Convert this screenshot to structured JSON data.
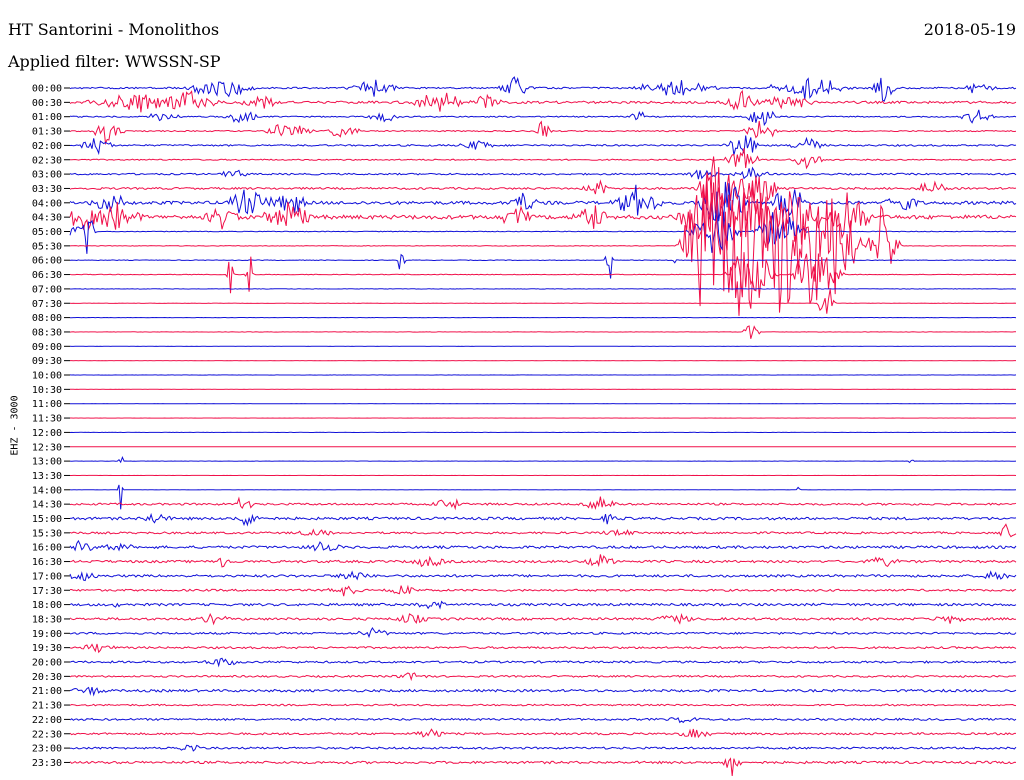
{
  "header": {
    "title": "HT Santorini - Monolithos",
    "date": "2018-05-19",
    "filter": "Applied filter: WWSSN-SP",
    "channel": "EHZ - 3000"
  },
  "colors": {
    "blue": "#1010d8",
    "red": "#f0104a"
  },
  "chart_data": {
    "type": "line",
    "title": "HT Santorini - Monolithos",
    "ylabel": "EHZ - 3000",
    "rows": [
      {
        "label": "00:00",
        "color": "blue",
        "noise": 0.8,
        "events": [
          {
            "x": 0.16,
            "a": 15,
            "w": 0.04
          },
          {
            "x": 0.32,
            "a": 12,
            "w": 0.03
          },
          {
            "x": 0.47,
            "a": 14,
            "w": 0.02
          },
          {
            "x": 0.64,
            "a": 10,
            "w": 0.05
          },
          {
            "x": 0.78,
            "a": 14,
            "w": 0.05
          },
          {
            "x": 0.86,
            "a": 22,
            "w": 0.015
          },
          {
            "x": 0.96,
            "a": 8,
            "w": 0.02
          }
        ]
      },
      {
        "label": "00:30",
        "color": "red",
        "noise": 1.2,
        "events": [
          {
            "x": 0.07,
            "a": 10,
            "w": 0.06
          },
          {
            "x": 0.13,
            "a": 14,
            "w": 0.03
          },
          {
            "x": 0.2,
            "a": 12,
            "w": 0.02
          },
          {
            "x": 0.39,
            "a": 14,
            "w": 0.03
          },
          {
            "x": 0.44,
            "a": 8,
            "w": 0.02
          },
          {
            "x": 0.71,
            "a": 16,
            "w": 0.02
          },
          {
            "x": 0.76,
            "a": 10,
            "w": 0.03
          }
        ]
      },
      {
        "label": "01:00",
        "color": "blue",
        "noise": 0.6,
        "events": [
          {
            "x": 0.1,
            "a": 8,
            "w": 0.02
          },
          {
            "x": 0.18,
            "a": 10,
            "w": 0.02
          },
          {
            "x": 0.33,
            "a": 8,
            "w": 0.02
          },
          {
            "x": 0.6,
            "a": 10,
            "w": 0.01
          },
          {
            "x": 0.73,
            "a": 14,
            "w": 0.02
          },
          {
            "x": 0.96,
            "a": 10,
            "w": 0.02
          }
        ]
      },
      {
        "label": "01:30",
        "color": "red",
        "noise": 0.6,
        "events": [
          {
            "x": 0.04,
            "a": 14,
            "w": 0.02
          },
          {
            "x": 0.23,
            "a": 10,
            "w": 0.03
          },
          {
            "x": 0.29,
            "a": 10,
            "w": 0.02
          },
          {
            "x": 0.5,
            "a": 12,
            "w": 0.01
          },
          {
            "x": 0.73,
            "a": 14,
            "w": 0.02
          }
        ]
      },
      {
        "label": "02:00",
        "color": "blue",
        "noise": 0.8,
        "events": [
          {
            "x": 0.03,
            "a": 12,
            "w": 0.02
          },
          {
            "x": 0.43,
            "a": 8,
            "w": 0.02
          },
          {
            "x": 0.71,
            "a": 18,
            "w": 0.02
          },
          {
            "x": 0.78,
            "a": 10,
            "w": 0.02
          }
        ]
      },
      {
        "label": "02:30",
        "color": "red",
        "noise": 0.6,
        "events": [
          {
            "x": 0.71,
            "a": 16,
            "w": 0.02
          },
          {
            "x": 0.78,
            "a": 10,
            "w": 0.02
          }
        ]
      },
      {
        "label": "03:00",
        "color": "blue",
        "noise": 0.8,
        "events": [
          {
            "x": 0.17,
            "a": 6,
            "w": 0.02
          },
          {
            "x": 0.67,
            "a": 8,
            "w": 0.02
          },
          {
            "x": 0.72,
            "a": 10,
            "w": 0.02
          }
        ]
      },
      {
        "label": "03:30",
        "color": "red",
        "noise": 1.0,
        "events": [
          {
            "x": 0.56,
            "a": 10,
            "w": 0.02
          },
          {
            "x": 0.69,
            "a": 40,
            "w": 0.03
          },
          {
            "x": 0.73,
            "a": 30,
            "w": 0.02
          },
          {
            "x": 0.91,
            "a": 8,
            "w": 0.02
          }
        ]
      },
      {
        "label": "04:00",
        "color": "blue",
        "noise": 1.6,
        "events": [
          {
            "x": 0.04,
            "a": 18,
            "w": 0.02
          },
          {
            "x": 0.19,
            "a": 16,
            "w": 0.03
          },
          {
            "x": 0.23,
            "a": 20,
            "w": 0.02
          },
          {
            "x": 0.48,
            "a": 12,
            "w": 0.02
          },
          {
            "x": 0.6,
            "a": 18,
            "w": 0.03
          },
          {
            "x": 0.69,
            "a": 40,
            "w": 0.03
          },
          {
            "x": 0.76,
            "a": 30,
            "w": 0.02
          },
          {
            "x": 0.88,
            "a": 14,
            "w": 0.02
          }
        ]
      },
      {
        "label": "04:30",
        "color": "red",
        "noise": 2.0,
        "events": [
          {
            "x": 0.01,
            "a": 24,
            "w": 0.03
          },
          {
            "x": 0.05,
            "a": 18,
            "w": 0.03
          },
          {
            "x": 0.16,
            "a": 14,
            "w": 0.02
          },
          {
            "x": 0.23,
            "a": 20,
            "w": 0.03
          },
          {
            "x": 0.47,
            "a": 14,
            "w": 0.02
          },
          {
            "x": 0.55,
            "a": 18,
            "w": 0.02
          },
          {
            "x": 0.68,
            "a": 60,
            "w": 0.04
          },
          {
            "x": 0.73,
            "a": 50,
            "w": 0.03
          },
          {
            "x": 0.77,
            "a": 40,
            "w": 0.03
          },
          {
            "x": 0.82,
            "a": 30,
            "w": 0.03
          }
        ]
      },
      {
        "label": "05:00",
        "color": "blue",
        "noise": 0.3,
        "events": [
          {
            "x": 0.01,
            "a": 14,
            "w": 0.02
          },
          {
            "x": 0.02,
            "a": 60,
            "w": 0.004
          },
          {
            "x": 0.68,
            "a": 40,
            "w": 0.03
          },
          {
            "x": 0.75,
            "a": 30,
            "w": 0.03
          }
        ]
      },
      {
        "label": "05:30",
        "color": "red",
        "noise": 0.3,
        "events": [
          {
            "x": 0.68,
            "a": 110,
            "w": 0.04
          },
          {
            "x": 0.72,
            "a": 90,
            "w": 0.04
          },
          {
            "x": 0.76,
            "a": 110,
            "w": 0.04
          },
          {
            "x": 0.81,
            "a": 80,
            "w": 0.03
          },
          {
            "x": 0.86,
            "a": 50,
            "w": 0.02
          }
        ]
      },
      {
        "label": "06:00",
        "color": "blue",
        "noise": 0.3,
        "events": [
          {
            "x": 0.35,
            "a": 16,
            "w": 0.005
          },
          {
            "x": 0.57,
            "a": 40,
            "w": 0.005
          },
          {
            "x": 0.64,
            "a": 6,
            "w": 0.003
          }
        ]
      },
      {
        "label": "06:30",
        "color": "red",
        "noise": 0.3,
        "events": [
          {
            "x": 0.17,
            "a": 30,
            "w": 0.005
          },
          {
            "x": 0.19,
            "a": 60,
            "w": 0.005
          },
          {
            "x": 0.72,
            "a": 40,
            "w": 0.03
          },
          {
            "x": 0.79,
            "a": 50,
            "w": 0.03
          }
        ]
      },
      {
        "label": "07:00",
        "color": "blue",
        "noise": 0.2,
        "events": []
      },
      {
        "label": "07:30",
        "color": "red",
        "noise": 0.2,
        "events": [
          {
            "x": 0.8,
            "a": 30,
            "w": 0.01
          }
        ]
      },
      {
        "label": "08:00",
        "color": "blue",
        "noise": 0.15,
        "events": []
      },
      {
        "label": "08:30",
        "color": "red",
        "noise": 0.15,
        "events": [
          {
            "x": 0.72,
            "a": 18,
            "w": 0.01
          }
        ]
      },
      {
        "label": "09:00",
        "color": "blue",
        "noise": 0.1,
        "events": []
      },
      {
        "label": "09:30",
        "color": "red",
        "noise": 0.1,
        "events": []
      },
      {
        "label": "10:00",
        "color": "blue",
        "noise": 0.1,
        "events": []
      },
      {
        "label": "10:30",
        "color": "red",
        "noise": 0.1,
        "events": []
      },
      {
        "label": "11:00",
        "color": "blue",
        "noise": 0.1,
        "events": []
      },
      {
        "label": "11:30",
        "color": "red",
        "noise": 0.1,
        "events": []
      },
      {
        "label": "12:00",
        "color": "blue",
        "noise": 0.1,
        "events": []
      },
      {
        "label": "12:30",
        "color": "red",
        "noise": 0.1,
        "events": []
      },
      {
        "label": "13:00",
        "color": "blue",
        "noise": 0.1,
        "events": [
          {
            "x": 0.054,
            "a": 12,
            "w": 0.003
          },
          {
            "x": 0.89,
            "a": 10,
            "w": 0.003
          }
        ]
      },
      {
        "label": "13:30",
        "color": "red",
        "noise": 0.1,
        "events": []
      },
      {
        "label": "14:00",
        "color": "blue",
        "noise": 0.15,
        "events": [
          {
            "x": 0.054,
            "a": 40,
            "w": 0.003
          },
          {
            "x": 0.77,
            "a": 4,
            "w": 0.003
          }
        ]
      },
      {
        "label": "14:30",
        "color": "red",
        "noise": 1.0,
        "events": [
          {
            "x": 0.18,
            "a": 16,
            "w": 0.004
          },
          {
            "x": 0.19,
            "a": 10,
            "w": 0.004
          },
          {
            "x": 0.4,
            "a": 8,
            "w": 0.02
          },
          {
            "x": 0.56,
            "a": 8,
            "w": 0.02
          }
        ]
      },
      {
        "label": "15:00",
        "color": "blue",
        "noise": 1.3,
        "events": [
          {
            "x": 0.09,
            "a": 6,
            "w": 0.02
          },
          {
            "x": 0.19,
            "a": 8,
            "w": 0.02
          },
          {
            "x": 0.57,
            "a": 8,
            "w": 0.01
          }
        ]
      },
      {
        "label": "15:30",
        "color": "red",
        "noise": 1.0,
        "events": [
          {
            "x": 0.26,
            "a": 6,
            "w": 0.02
          },
          {
            "x": 0.58,
            "a": 6,
            "w": 0.02
          },
          {
            "x": 0.99,
            "a": 10,
            "w": 0.01
          }
        ]
      },
      {
        "label": "16:00",
        "color": "blue",
        "noise": 1.3,
        "events": [
          {
            "x": 0.01,
            "a": 6,
            "w": 0.02
          },
          {
            "x": 0.05,
            "a": 6,
            "w": 0.02
          },
          {
            "x": 0.27,
            "a": 6,
            "w": 0.02
          }
        ]
      },
      {
        "label": "16:30",
        "color": "red",
        "noise": 1.2,
        "events": [
          {
            "x": 0.16,
            "a": 8,
            "w": 0.01
          },
          {
            "x": 0.38,
            "a": 7,
            "w": 0.02
          },
          {
            "x": 0.56,
            "a": 7,
            "w": 0.02
          },
          {
            "x": 0.86,
            "a": 6,
            "w": 0.02
          }
        ]
      },
      {
        "label": "17:00",
        "color": "blue",
        "noise": 1.2,
        "events": [
          {
            "x": 0.01,
            "a": 6,
            "w": 0.02
          },
          {
            "x": 0.3,
            "a": 6,
            "w": 0.02
          },
          {
            "x": 0.98,
            "a": 6,
            "w": 0.02
          }
        ]
      },
      {
        "label": "17:30",
        "color": "red",
        "noise": 1.0,
        "events": [
          {
            "x": 0.29,
            "a": 6,
            "w": 0.02
          },
          {
            "x": 0.35,
            "a": 6,
            "w": 0.02
          }
        ]
      },
      {
        "label": "18:00",
        "color": "blue",
        "noise": 1.2,
        "events": [
          {
            "x": 0.05,
            "a": 6,
            "w": 0.005
          },
          {
            "x": 0.38,
            "a": 6,
            "w": 0.02
          }
        ]
      },
      {
        "label": "18:30",
        "color": "red",
        "noise": 1.2,
        "events": [
          {
            "x": 0.15,
            "a": 5,
            "w": 0.02
          },
          {
            "x": 0.36,
            "a": 6,
            "w": 0.02
          },
          {
            "x": 0.64,
            "a": 7,
            "w": 0.02
          },
          {
            "x": 0.93,
            "a": 7,
            "w": 0.02
          }
        ]
      },
      {
        "label": "19:00",
        "color": "blue",
        "noise": 1.0,
        "events": [
          {
            "x": 0.32,
            "a": 6,
            "w": 0.02
          }
        ]
      },
      {
        "label": "19:30",
        "color": "red",
        "noise": 1.0,
        "events": [
          {
            "x": 0.03,
            "a": 6,
            "w": 0.02
          }
        ]
      },
      {
        "label": "20:00",
        "color": "blue",
        "noise": 1.0,
        "events": [
          {
            "x": 0.16,
            "a": 6,
            "w": 0.02
          }
        ]
      },
      {
        "label": "20:30",
        "color": "red",
        "noise": 0.9,
        "events": [
          {
            "x": 0.36,
            "a": 5,
            "w": 0.02
          }
        ]
      },
      {
        "label": "21:00",
        "color": "blue",
        "noise": 1.2,
        "events": [
          {
            "x": 0.02,
            "a": 6,
            "w": 0.02
          }
        ]
      },
      {
        "label": "21:30",
        "color": "red",
        "noise": 0.8,
        "events": []
      },
      {
        "label": "22:00",
        "color": "blue",
        "noise": 1.0,
        "events": [
          {
            "x": 0.65,
            "a": 4,
            "w": 0.02
          }
        ]
      },
      {
        "label": "22:30",
        "color": "red",
        "noise": 1.0,
        "events": [
          {
            "x": 0.38,
            "a": 6,
            "w": 0.02
          },
          {
            "x": 0.66,
            "a": 6,
            "w": 0.02
          }
        ]
      },
      {
        "label": "23:00",
        "color": "blue",
        "noise": 1.0,
        "events": [
          {
            "x": 0.13,
            "a": 5,
            "w": 0.02
          }
        ]
      },
      {
        "label": "23:30",
        "color": "red",
        "noise": 1.2,
        "events": [
          {
            "x": 0.7,
            "a": 16,
            "w": 0.01
          }
        ]
      }
    ]
  }
}
